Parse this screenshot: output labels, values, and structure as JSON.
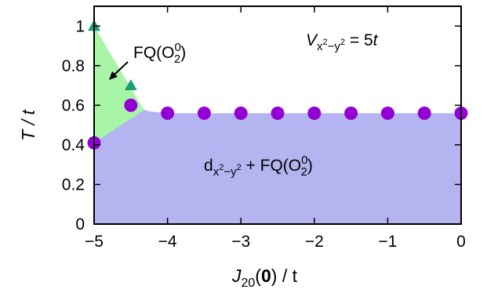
{
  "chart_data": {
    "type": "scatter",
    "xlabel_parts": {
      "main": "J",
      "sub": "20",
      "arg_open": "(",
      "arg_bold": "0",
      "arg_close": ")",
      "rest": " / t"
    },
    "ylabel": "T / t",
    "xlim": [
      -5,
      0
    ],
    "ylim": [
      0,
      1.1
    ],
    "xticks": [
      -5,
      -4,
      -3,
      -2,
      -1,
      0
    ],
    "xtick_labels": [
      "−5",
      "−4",
      "−3",
      "−2",
      "−1",
      "0"
    ],
    "yticks": [
      0,
      0.2,
      0.4,
      0.6,
      0.8,
      1
    ],
    "ytick_labels": [
      "0",
      "0.2",
      "0.4",
      "0.6",
      "0.8",
      "1"
    ],
    "grid": false,
    "legend": "none",
    "series": [
      {
        "marker": "circle",
        "color": "#9400d3",
        "points": [
          [
            -5,
            0.41
          ],
          [
            -4.5,
            0.6
          ],
          [
            -4,
            0.56
          ],
          [
            -3.5,
            0.56
          ],
          [
            -3,
            0.56
          ],
          [
            -2.5,
            0.56
          ],
          [
            -2,
            0.56
          ],
          [
            -1.5,
            0.56
          ],
          [
            -1,
            0.56
          ],
          [
            -0.5,
            0.56
          ],
          [
            0,
            0.56
          ]
        ]
      },
      {
        "marker": "triangle",
        "color": "#1b9e77",
        "points": [
          [
            -5,
            1.0
          ],
          [
            -4.5,
            0.7
          ]
        ]
      }
    ],
    "regions": [
      {
        "color": "#b4b4f0",
        "boundary": [
          [
            -5,
            0
          ],
          [
            -5,
            0.41
          ],
          [
            -4.5,
            0.6
          ],
          [
            -4.25,
            0.57
          ],
          [
            -4,
            0.56
          ],
          [
            0,
            0.56
          ],
          [
            0,
            0
          ]
        ]
      },
      {
        "color": "#a8f5a8",
        "boundary": [
          [
            -5,
            1.0
          ],
          [
            -4.32,
            0.575
          ],
          [
            -5,
            0.41
          ]
        ]
      }
    ],
    "annotations": {
      "param": {
        "var": "V",
        "sub_pre": "x",
        "sub_sup1": "2",
        "sub_mid": "−y",
        "sub_sup2": "2",
        "eq": " = 5",
        "unit": "t"
      },
      "fq_label": {
        "text": "FQ(O",
        "sup": "0",
        "sub": "2",
        "close": ")"
      },
      "region_label": {
        "d": "d",
        "sub_pre": "x",
        "sub_sup1": "2",
        "sub_mid": "−y",
        "sub_sup2": "2",
        "plus": " + FQ(O",
        "sup": "0",
        "sub": "2",
        "close": ")"
      }
    }
  }
}
